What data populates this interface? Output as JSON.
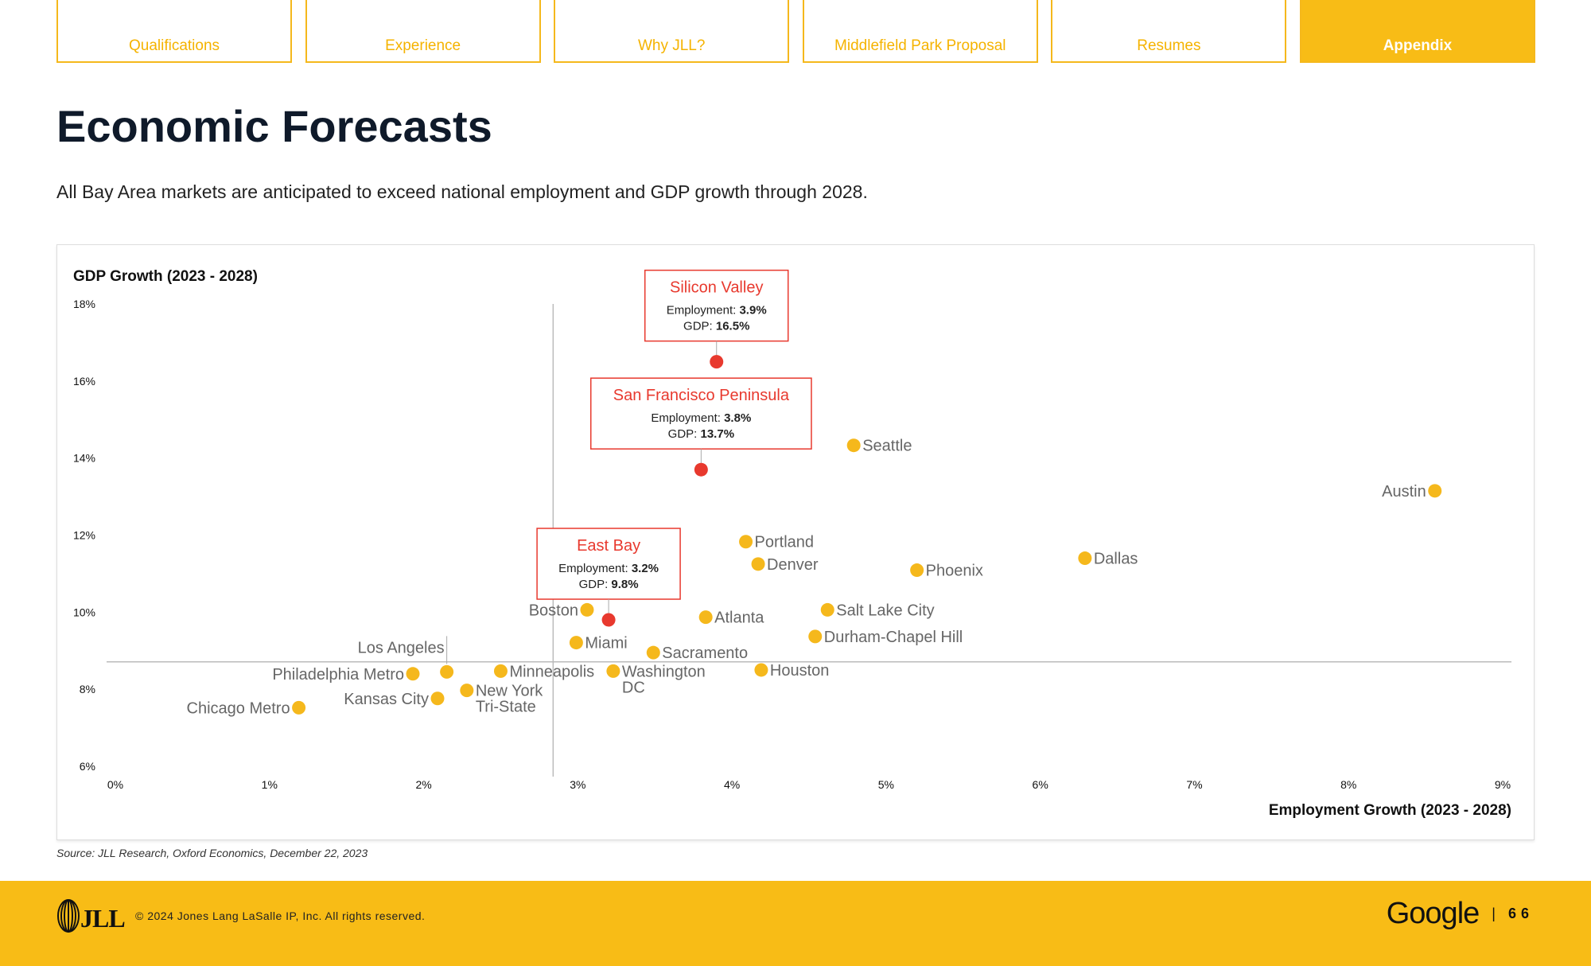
{
  "tabs": [
    {
      "label": "Qualifications",
      "active": false
    },
    {
      "label": "Experience",
      "active": false
    },
    {
      "label": "Why JLL?",
      "active": false
    },
    {
      "label": "Middlefield Park Proposal",
      "active": false
    },
    {
      "label": "Resumes",
      "active": false
    },
    {
      "label": "Appendix",
      "active": true
    }
  ],
  "page": {
    "title": "Economic Forecasts",
    "subtitle": "All Bay Area markets are anticipated to exceed national employment and GDP growth through 2028.",
    "source": "Source: JLL Research, Oxford Economics, December 22, 2023"
  },
  "footer": {
    "logo_text": "JLL",
    "copyright": "© 2024 Jones Lang LaSalle IP, Inc. All rights reserved.",
    "client": "Google",
    "separator": "|",
    "page_number": "66"
  },
  "colors": {
    "accent": "#F8BC16",
    "highlight": "#E8392E",
    "point": "#F5B81C"
  },
  "chart_data": {
    "type": "scatter",
    "xlabel": "Employment Growth (2023 - 2028)",
    "ylabel": "GDP Growth (2023 - 2028)",
    "xlim": [
      0,
      9
    ],
    "ylim": [
      6,
      18
    ],
    "x_ticks": [
      "0%",
      "1%",
      "2%",
      "3%",
      "4%",
      "5%",
      "6%",
      "7%",
      "8%",
      "9%"
    ],
    "y_ticks": [
      "6%",
      "8%",
      "10%",
      "12%",
      "14%",
      "16%",
      "18%"
    ],
    "reference_lines": {
      "x": 2.84,
      "y": 8.71
    },
    "highlighted": [
      {
        "name": "Silicon Valley",
        "x": 3.9,
        "y": 16.5,
        "employment_label": "Employment:",
        "employment": "3.9%",
        "gdp_label": "GDP:",
        "gdp": "16.5%"
      },
      {
        "name": "San Francisco Peninsula",
        "x": 3.8,
        "y": 13.7,
        "employment_label": "Employment:",
        "employment": "3.8%",
        "gdp_label": "GDP:",
        "gdp": "13.7%"
      },
      {
        "name": "East Bay",
        "x": 3.2,
        "y": 9.8,
        "employment_label": "Employment:",
        "employment": "3.2%",
        "gdp_label": "GDP:",
        "gdp": "9.8%"
      }
    ],
    "points": [
      {
        "label": [
          "Seattle"
        ],
        "x": 4.79,
        "y": 14.33
      },
      {
        "label": [
          "Austin"
        ],
        "x": 8.56,
        "y": 13.15
      },
      {
        "label": [
          "Portland"
        ],
        "x": 4.09,
        "y": 11.83
      },
      {
        "label": [
          "Denver"
        ],
        "x": 4.17,
        "y": 11.25
      },
      {
        "label": [
          "Phoenix"
        ],
        "x": 5.2,
        "y": 11.09
      },
      {
        "label": [
          "Dallas"
        ],
        "x": 6.29,
        "y": 11.4
      },
      {
        "label": [
          "Boston"
        ],
        "x": 3.06,
        "y": 10.06
      },
      {
        "label": [
          "Atlanta"
        ],
        "x": 3.83,
        "y": 9.87
      },
      {
        "label": [
          "Salt Lake City"
        ],
        "x": 4.62,
        "y": 10.06
      },
      {
        "label": [
          "Durham-Chapel Hill"
        ],
        "x": 4.54,
        "y": 9.37
      },
      {
        "label": [
          "Miami"
        ],
        "x": 2.99,
        "y": 9.21
      },
      {
        "label": [
          "Sacramento"
        ],
        "x": 3.49,
        "y": 8.95
      },
      {
        "label": [
          "Houston"
        ],
        "x": 4.19,
        "y": 8.5
      },
      {
        "label": [
          "Washington",
          "DC"
        ],
        "x": 3.23,
        "y": 8.47
      },
      {
        "label": [
          "Minneapolis"
        ],
        "x": 2.5,
        "y": 8.47
      },
      {
        "label": [
          "Los Angeles"
        ],
        "x": 2.15,
        "y": 8.45
      },
      {
        "label": [
          "Philadelphia Metro"
        ],
        "x": 1.93,
        "y": 8.4
      },
      {
        "label": [
          "New York",
          "Tri-State"
        ],
        "x": 2.28,
        "y": 7.97
      },
      {
        "label": [
          "Kansas City"
        ],
        "x": 2.09,
        "y": 7.76
      },
      {
        "label": [
          "Chicago Metro"
        ],
        "x": 1.19,
        "y": 7.52
      }
    ]
  }
}
